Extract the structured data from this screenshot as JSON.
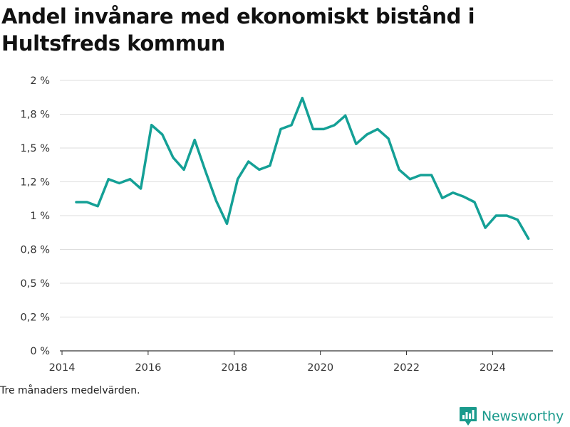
{
  "title": "Andel invånare med ekonomiskt bistånd i Hultsfreds kommun",
  "footnote": "Tre månaders medelvärden.",
  "brand": {
    "name": "Newsworthy",
    "color": "#1a9a8c",
    "icon": "bar-chart-logo-icon"
  },
  "chart_data": {
    "type": "line",
    "title": "Andel invånare med ekonomiskt bistånd i Hultsfreds kommun",
    "xlabel": "",
    "ylabel": "",
    "xlim": [
      2013.95,
      2025.4
    ],
    "ylim": [
      0,
      2
    ],
    "x_ticks": [
      2014,
      2016,
      2018,
      2020,
      2022,
      2024
    ],
    "x_tick_labels": [
      "2014",
      "2016",
      "2018",
      "2020",
      "2022",
      "2024"
    ],
    "y_ticks": [
      0,
      0.25,
      0.5,
      0.75,
      1,
      1.25,
      1.5,
      1.75,
      2
    ],
    "y_tick_labels": [
      "0 %",
      "0,2 %",
      "0,5 %",
      "0,8 %",
      "1 %",
      "1,2 %",
      "1,5 %",
      "1,8 %",
      "2 %"
    ],
    "grid": true,
    "legend": "none",
    "series": [
      {
        "color": "#14a096",
        "x": [
          2014.33,
          2014.58,
          2014.83,
          2015.08,
          2015.33,
          2015.58,
          2015.83,
          2016.08,
          2016.33,
          2016.58,
          2016.83,
          2017.08,
          2017.33,
          2017.58,
          2017.83,
          2018.08,
          2018.33,
          2018.58,
          2018.83,
          2019.08,
          2019.33,
          2019.58,
          2019.83,
          2020.08,
          2020.33,
          2020.58,
          2020.83,
          2021.08,
          2021.33,
          2021.58,
          2021.83,
          2022.08,
          2022.33,
          2022.58,
          2022.83,
          2023.08,
          2023.33,
          2023.58,
          2023.83,
          2024.08,
          2024.33,
          2024.58,
          2024.83
        ],
        "values": [
          1.1,
          1.1,
          1.07,
          1.27,
          1.24,
          1.27,
          1.2,
          1.67,
          1.6,
          1.43,
          1.34,
          1.56,
          1.33,
          1.11,
          0.94,
          1.27,
          1.4,
          1.34,
          1.37,
          1.64,
          1.67,
          1.87,
          1.64,
          1.64,
          1.67,
          1.74,
          1.53,
          1.6,
          1.64,
          1.57,
          1.34,
          1.27,
          1.3,
          1.3,
          1.13,
          1.17,
          1.14,
          1.1,
          0.91,
          1.0,
          1.0,
          0.97,
          0.83
        ]
      }
    ]
  }
}
